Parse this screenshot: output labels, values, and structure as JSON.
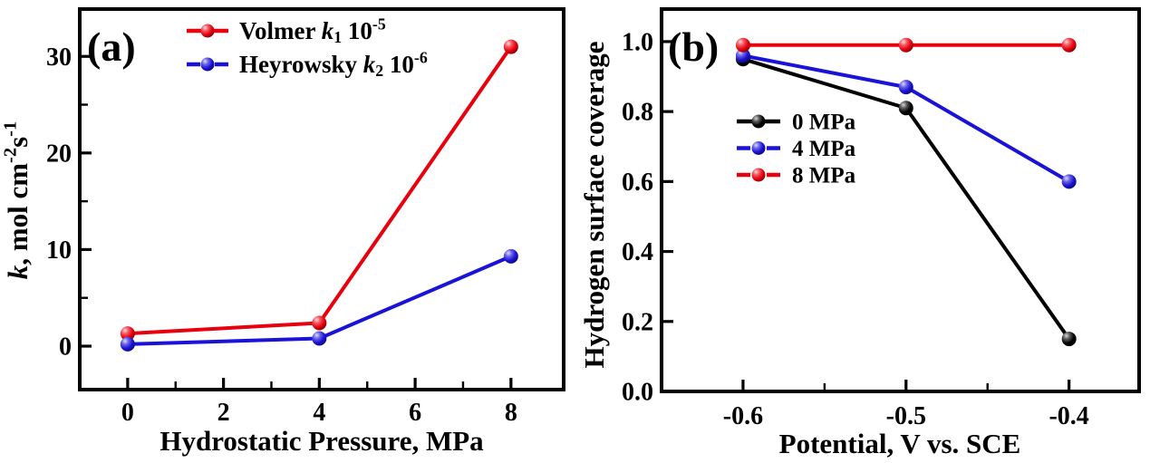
{
  "figure": {
    "background": "#ffffff",
    "colors": {
      "red": "#e8000d",
      "blue": "#1a12d6",
      "black": "#000000"
    }
  },
  "chart_data": [
    {
      "type": "line",
      "panel_label": "(a)",
      "xlabel": "Hydrostatic Pressure, MPa",
      "ylabel_segments": [
        {
          "text": "k",
          "style": "italic"
        },
        {
          "text": ", mol cm",
          "style": "normal"
        },
        {
          "text": "-2",
          "style": "super"
        },
        {
          "text": "s",
          "style": "normal"
        },
        {
          "text": "-1",
          "style": "super"
        }
      ],
      "xlim": [
        -1.0,
        9.1
      ],
      "ylim": [
        -4.5,
        34.9
      ],
      "xticks": {
        "values": [
          0,
          2,
          4,
          6,
          8
        ],
        "labels": [
          "0",
          "2",
          "4",
          "6",
          "8"
        ],
        "minor": [
          1,
          3,
          5,
          7
        ]
      },
      "yticks": {
        "values": [
          0,
          10,
          20,
          30
        ],
        "labels": [
          "0",
          "10",
          "20",
          "30"
        ],
        "minor": [
          5,
          15,
          25
        ]
      },
      "grid": false,
      "legend_position": "top-center-inside",
      "series": [
        {
          "label_segments": [
            {
              "text": "Volmer  ",
              "style": "normal"
            },
            {
              "text": "k",
              "style": "italic"
            },
            {
              "text": "1",
              "style": "sub"
            },
            {
              "text": " 10",
              "style": "normal"
            },
            {
              "text": "-5",
              "style": "super"
            }
          ],
          "color": "#e8000d",
          "line": "solid",
          "legend_line": "solid",
          "marker": "sphere",
          "x": [
            0,
            4,
            8
          ],
          "y": [
            1.3,
            2.4,
            31.0
          ]
        },
        {
          "label_segments": [
            {
              "text": "Heyrowsky  ",
              "style": "normal"
            },
            {
              "text": "k",
              "style": "italic"
            },
            {
              "text": "2",
              "style": "sub"
            },
            {
              "text": " 10",
              "style": "normal"
            },
            {
              "text": "-6",
              "style": "super"
            }
          ],
          "color": "#1a12d6",
          "line": "solid",
          "legend_line": "dashed",
          "marker": "sphere",
          "x": [
            0,
            4,
            8
          ],
          "y": [
            0.2,
            0.8,
            9.3
          ]
        }
      ]
    },
    {
      "type": "line",
      "panel_label": "(b)",
      "xlabel": "Potential, V vs. SCE",
      "ylabel_segments": [
        {
          "text": "Hydrogen surface coverage",
          "style": "normal"
        }
      ],
      "xlim": [
        -0.65,
        -0.357
      ],
      "ylim": [
        0,
        1.093
      ],
      "xticks": {
        "values": [
          -0.6,
          -0.5,
          -0.4
        ],
        "labels": [
          "-0.6",
          "-0.5",
          "-0.4"
        ],
        "minor": [
          -0.55,
          -0.45
        ]
      },
      "yticks": {
        "values": [
          0,
          0.2,
          0.4,
          0.6,
          0.8,
          1.0
        ],
        "labels": [
          "0.0",
          "0.2",
          "0.4",
          "0.6",
          "0.8",
          "1.0"
        ],
        "minor": []
      },
      "grid": false,
      "legend_position": "left-middle-inside",
      "series": [
        {
          "label_segments": [
            {
              "text": "0 MPa",
              "style": "normal"
            }
          ],
          "color": "#000000",
          "line": "solid",
          "legend_line": "solid",
          "marker": "sphere",
          "x": [
            -0.6,
            -0.5,
            -0.4
          ],
          "y": [
            0.95,
            0.81,
            0.15
          ]
        },
        {
          "label_segments": [
            {
              "text": "4 MPa",
              "style": "normal"
            }
          ],
          "color": "#1a12d6",
          "line": "solid",
          "legend_line": "dashed",
          "marker": "sphere",
          "x": [
            -0.6,
            -0.5,
            -0.4
          ],
          "y": [
            0.96,
            0.87,
            0.6
          ]
        },
        {
          "label_segments": [
            {
              "text": "8 MPa",
              "style": "normal"
            }
          ],
          "color": "#e8000d",
          "line": "solid",
          "legend_line": "dashed",
          "marker": "sphere",
          "x": [
            -0.6,
            -0.5,
            -0.4
          ],
          "y": [
            0.99,
            0.99,
            0.99
          ]
        }
      ]
    }
  ]
}
